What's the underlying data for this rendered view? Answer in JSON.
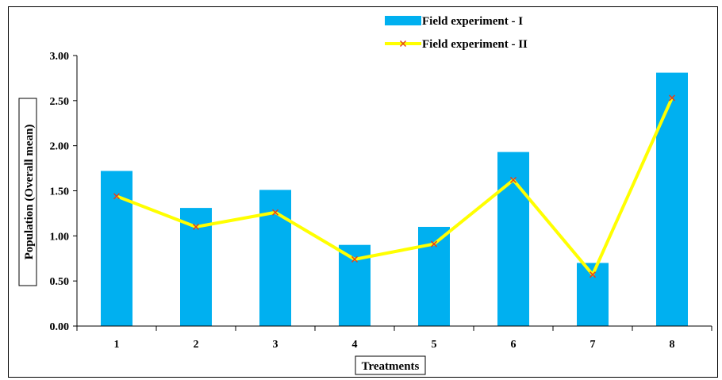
{
  "chart_data": {
    "type": "bar",
    "categories": [
      "1",
      "2",
      "3",
      "4",
      "5",
      "6",
      "7",
      "8"
    ],
    "series": [
      {
        "name": "Field experiment - I",
        "kind": "bar",
        "color": "#00B0F0",
        "values": [
          1.72,
          1.31,
          1.51,
          0.9,
          1.1,
          1.93,
          0.7,
          2.81
        ]
      },
      {
        "name": "Field experiment - II",
        "kind": "line",
        "color": "#FFFF00",
        "marker_color": "#E04020",
        "values": [
          1.44,
          1.1,
          1.26,
          0.74,
          0.91,
          1.62,
          0.57,
          2.53
        ]
      }
    ],
    "xlabel": "Treatments",
    "ylabel": "Population (Overall mean)",
    "ylim": [
      0,
      3.0
    ],
    "yticks": [
      "0.00",
      "0.50",
      "1.00",
      "1.50",
      "2.00",
      "2.50",
      "3.00"
    ],
    "grid": false,
    "legend_position": "top-center"
  }
}
